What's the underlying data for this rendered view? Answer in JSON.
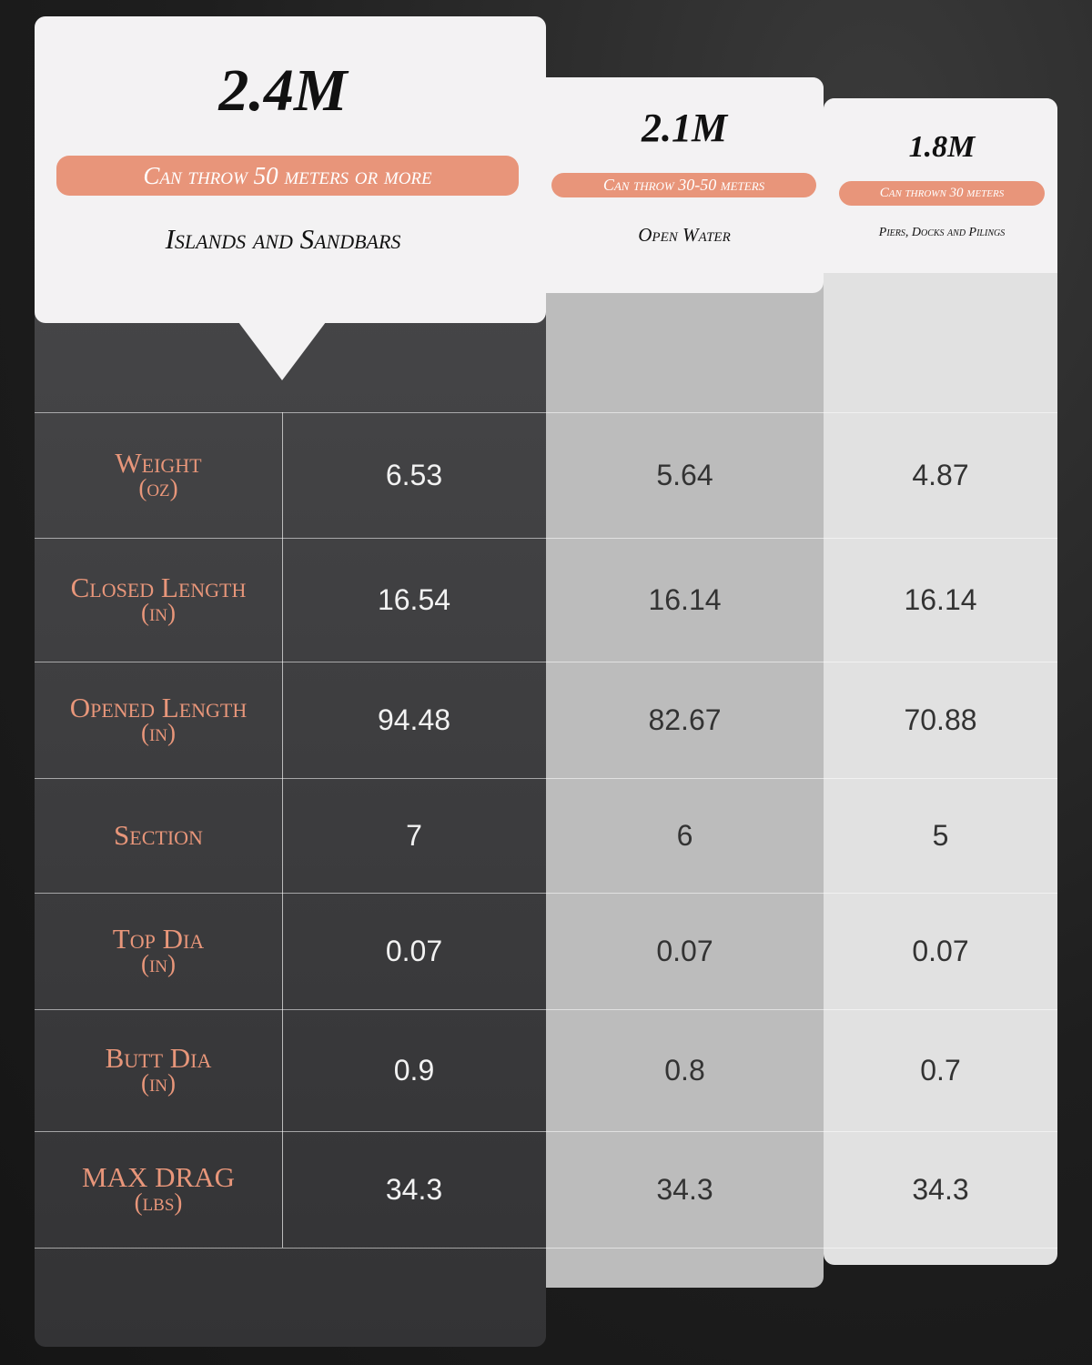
{
  "columns": [
    {
      "title": "2.4M",
      "badge": "Can throw 50 meters or more",
      "subtitle": "Islands and Sandbars"
    },
    {
      "title": "2.1M",
      "badge": "Can throw 30-50 meters",
      "subtitle": "Open Water"
    },
    {
      "title": "1.8M",
      "badge": "Can thrown 30 meters",
      "subtitle": "Piers, Docks and Pilings"
    }
  ],
  "rows": [
    {
      "label": "Weight",
      "unit": "(oz)",
      "values": [
        "6.53",
        "5.64",
        "4.87"
      ]
    },
    {
      "label": "Closed Length",
      "unit": "(in)",
      "values": [
        "16.54",
        "16.14",
        "16.14"
      ]
    },
    {
      "label": "Opened Length",
      "unit": "(in)",
      "values": [
        "94.48",
        "82.67",
        "70.88"
      ]
    },
    {
      "label": "Section",
      "values": [
        "7",
        "6",
        "5"
      ]
    },
    {
      "label": "Top Dia",
      "unit": "(in)",
      "values": [
        "0.07",
        "0.07",
        "0.07"
      ]
    },
    {
      "label": "Butt Dia",
      "unit": "(in)",
      "values": [
        "0.9",
        "0.8",
        "0.7"
      ]
    },
    {
      "label": "MAX DRAG",
      "unit": "(lbs)",
      "values": [
        "34.3",
        "34.3",
        "34.3"
      ]
    }
  ]
}
